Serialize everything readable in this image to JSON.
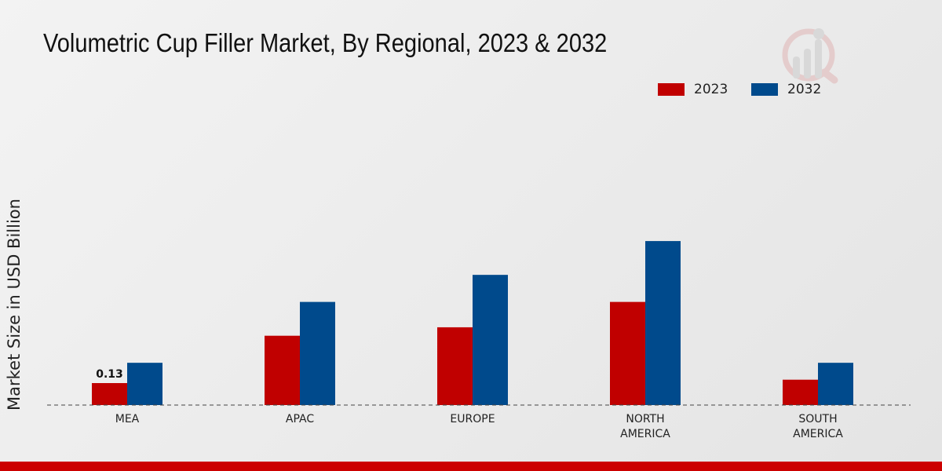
{
  "chart_data": {
    "type": "bar",
    "title": "Volumetric Cup Filler Market, By Regional, 2023 & 2032",
    "xlabel": "",
    "ylabel": "Market Size in USD Billion",
    "ylim": [
      0,
      1.56
    ],
    "categories": [
      "MEA",
      "APAC",
      "EUROPE",
      "NORTH AMERICA",
      "SOUTH AMERICA"
    ],
    "category_lines": [
      [
        "MEA"
      ],
      [
        "APAC"
      ],
      [
        "EUROPE"
      ],
      [
        "NORTH",
        "AMERICA"
      ],
      [
        "SOUTH",
        "AMERICA"
      ]
    ],
    "series": [
      {
        "name": "2023",
        "color": "#c00000",
        "values": [
          0.13,
          0.41,
          0.46,
          0.61,
          0.15
        ]
      },
      {
        "name": "2032",
        "color": "#004a8c",
        "values": [
          0.25,
          0.61,
          0.77,
          0.97,
          0.25
        ]
      }
    ],
    "data_labels": [
      {
        "series": 0,
        "index": 0,
        "text": "0.13"
      }
    ],
    "legend": "top-right",
    "grid": false
  }
}
